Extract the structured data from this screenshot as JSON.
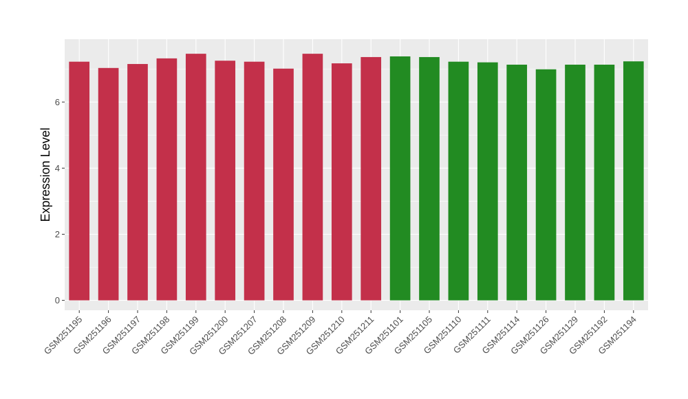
{
  "chart_data": {
    "type": "bar",
    "title": "",
    "xlabel": "",
    "ylabel": "Expression Level",
    "ylim": [
      -0.3,
      7.9
    ],
    "yticks": [
      0,
      2,
      4,
      6
    ],
    "grid": true,
    "legend": "none",
    "categories": [
      "GSM251195",
      "GSM251196",
      "GSM251197",
      "GSM251198",
      "GSM251199",
      "GSM251200",
      "GSM251207",
      "GSM251208",
      "GSM251209",
      "GSM251210",
      "GSM251211",
      "GSM251101",
      "GSM251105",
      "GSM251110",
      "GSM251111",
      "GSM251114",
      "GSM251126",
      "GSM251129",
      "GSM251192",
      "GSM251194"
    ],
    "values": [
      7.22,
      7.03,
      7.15,
      7.32,
      7.46,
      7.25,
      7.22,
      7.01,
      7.46,
      7.17,
      7.36,
      7.38,
      7.36,
      7.22,
      7.2,
      7.13,
      6.99,
      7.13,
      7.13,
      7.23
    ],
    "groups": [
      "red",
      "red",
      "red",
      "red",
      "red",
      "red",
      "red",
      "red",
      "red",
      "red",
      "red",
      "green",
      "green",
      "green",
      "green",
      "green",
      "green",
      "green",
      "green",
      "green"
    ],
    "colors": {
      "red": "#c3304a",
      "green": "#228b22",
      "panel": "#ebebeb",
      "grid": "#ffffff"
    }
  }
}
